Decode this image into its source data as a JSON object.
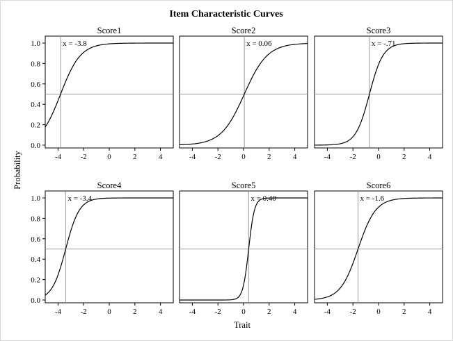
{
  "chart_data": {
    "type": "line",
    "title": "Item Characteristic Curves",
    "xlabel": "Trait",
    "ylabel": "Probability",
    "xlim": [
      -5,
      5
    ],
    "ylim": [
      0,
      1
    ],
    "x_ticks": [
      "-4",
      "-2",
      "0",
      "2",
      "4"
    ],
    "x_tick_values": [
      -4,
      -2,
      0,
      2,
      4
    ],
    "y_ticks": [
      "0.0",
      "0.2",
      "0.4",
      "0.6",
      "0.8",
      "1.0"
    ],
    "y_tick_values": [
      0,
      0.2,
      0.4,
      0.6,
      0.8,
      1.0
    ],
    "reference_y": 0.5,
    "curve_color": "#000000",
    "reference_color": "#9a9a9a",
    "grid": false,
    "panels": [
      {
        "title": "Score1",
        "threshold": -3.8,
        "slope": 0.75,
        "annotation": "x = -3.8"
      },
      {
        "title": "Score2",
        "threshold": 0.06,
        "slope": 0.65,
        "annotation": "x = 0.06"
      },
      {
        "title": "Score3",
        "threshold": -0.71,
        "slope": 1.1,
        "annotation": "x = -.71"
      },
      {
        "title": "Score4",
        "threshold": -3.4,
        "slope": 1.1,
        "annotation": "x = -3.4"
      },
      {
        "title": "Score5",
        "threshold": 0.4,
        "slope": 2.6,
        "annotation": "x = 0.40"
      },
      {
        "title": "Score6",
        "threshold": -1.6,
        "slope": 0.85,
        "annotation": "x = -1.6"
      }
    ]
  }
}
